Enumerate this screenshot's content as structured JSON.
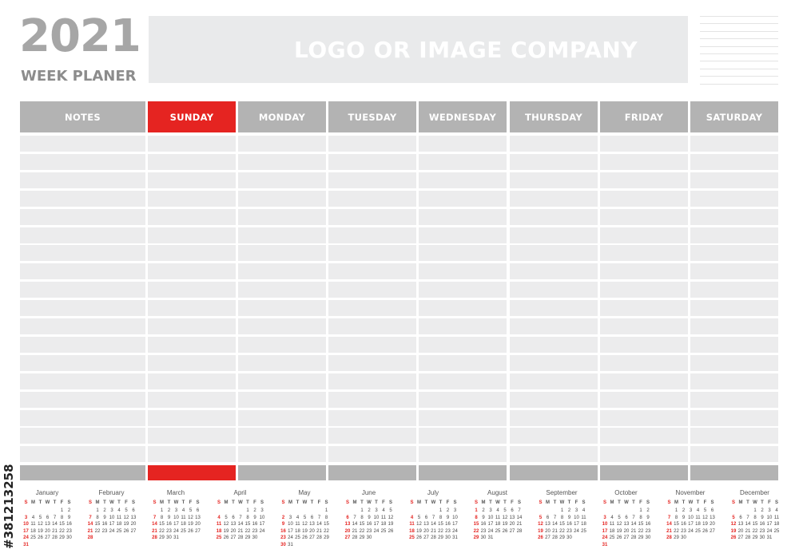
{
  "header": {
    "year": "2021",
    "subtitle": "WEEK PLANER",
    "logo_placeholder": "LOGO OR IMAGE COMPANY"
  },
  "columns": [
    {
      "label": "NOTES",
      "highlight": false
    },
    {
      "label": "SUNDAY",
      "highlight": true
    },
    {
      "label": "MONDAY",
      "highlight": false
    },
    {
      "label": "TUESDAY",
      "highlight": false
    },
    {
      "label": "WEDNESDAY",
      "highlight": false
    },
    {
      "label": "THURSDAY",
      "highlight": false
    },
    {
      "label": "FRIDAY",
      "highlight": false
    },
    {
      "label": "SATURDAY",
      "highlight": false
    }
  ],
  "colors": {
    "accent": "#e52421",
    "header_gray": "#b3b3b3",
    "row_gray": "#ececed",
    "logo_box": "#e9eaeb"
  },
  "calendar": {
    "weekday_labels": [
      "S",
      "M",
      "T",
      "W",
      "T",
      "F",
      "S"
    ],
    "months": [
      {
        "name": "January",
        "first_weekday": 5,
        "days": 31
      },
      {
        "name": "February",
        "first_weekday": 1,
        "days": 28
      },
      {
        "name": "March",
        "first_weekday": 1,
        "days": 31
      },
      {
        "name": "April",
        "first_weekday": 4,
        "days": 30
      },
      {
        "name": "May",
        "first_weekday": 6,
        "days": 31
      },
      {
        "name": "June",
        "first_weekday": 2,
        "days": 30
      },
      {
        "name": "July",
        "first_weekday": 4,
        "days": 31
      },
      {
        "name": "August",
        "first_weekday": 0,
        "days": 31
      },
      {
        "name": "September",
        "first_weekday": 3,
        "days": 30
      },
      {
        "name": "October",
        "first_weekday": 5,
        "days": 31
      },
      {
        "name": "November",
        "first_weekday": 1,
        "days": 30
      },
      {
        "name": "December",
        "first_weekday": 3,
        "days": 31
      }
    ]
  },
  "side_text": "#381213258"
}
